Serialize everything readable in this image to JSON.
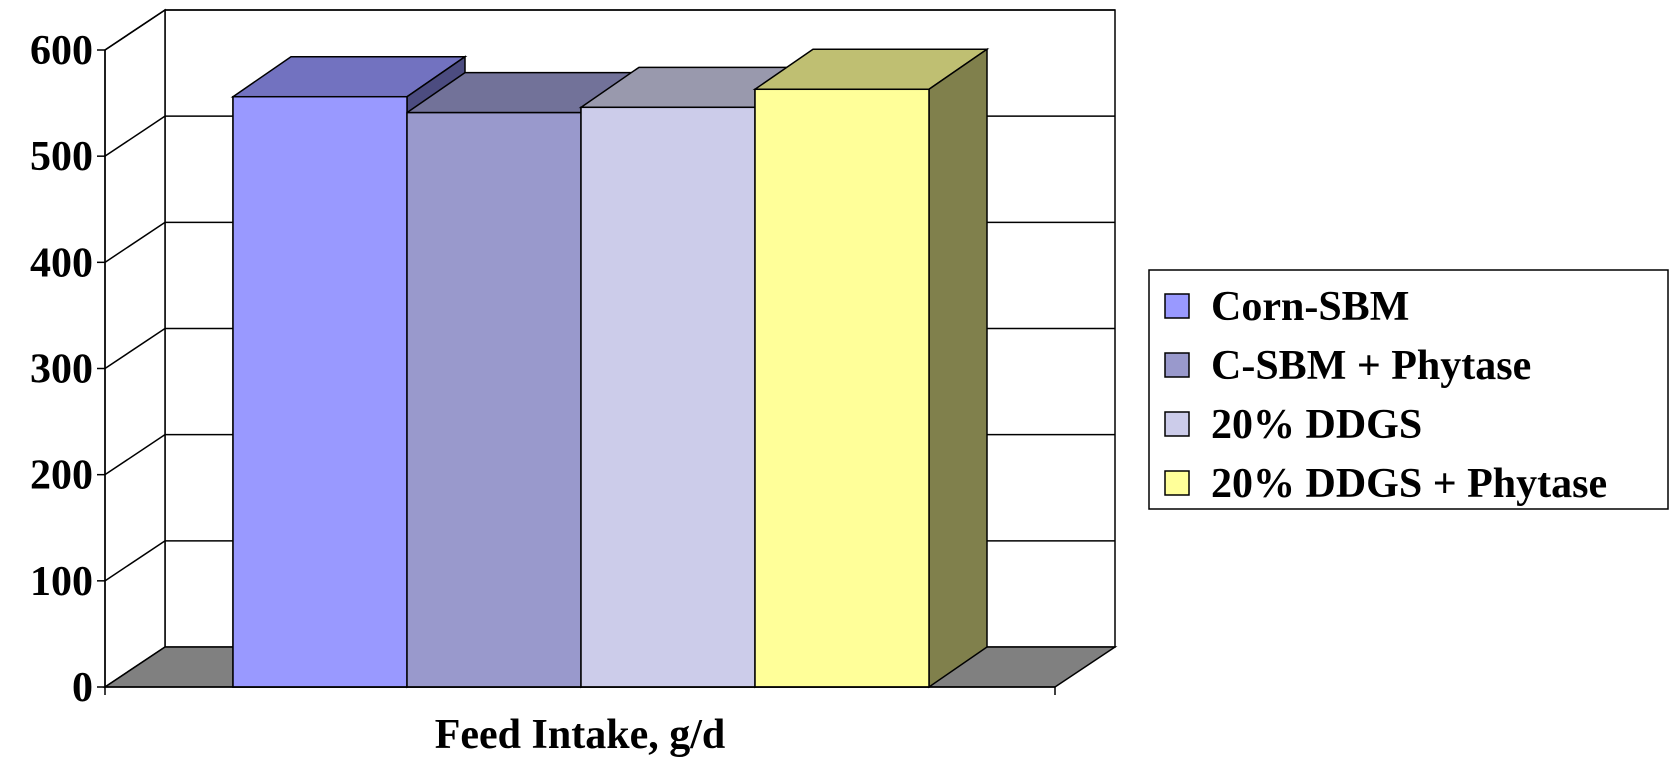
{
  "chart_data": {
    "type": "bar",
    "title": "",
    "xlabel": "Feed Intake, g/d",
    "ylabel": "",
    "ylim": [
      0,
      600
    ],
    "yticks": [
      0,
      100,
      200,
      300,
      400,
      500,
      600
    ],
    "grid": true,
    "legend_position": "right",
    "three_d": true,
    "series": [
      {
        "name": "Corn-SBM",
        "values": [
          556
        ],
        "color": "#9999ff",
        "top_color": "#7272c0",
        "side_color": "#4c4c80"
      },
      {
        "name": "C-SBM + Phytase",
        "values": [
          541
        ],
        "color": "#9999cc",
        "top_color": "#727299",
        "side_color": "#4c4c66"
      },
      {
        "name": "20% DDGS",
        "values": [
          546
        ],
        "color": "#ccccea",
        "top_color": "#9999ad",
        "side_color": "#666673"
      },
      {
        "name": "20% DDGS + Phytase",
        "values": [
          563
        ],
        "color": "#ffff99",
        "top_color": "#bfbf72",
        "side_color": "#80804c"
      }
    ]
  }
}
